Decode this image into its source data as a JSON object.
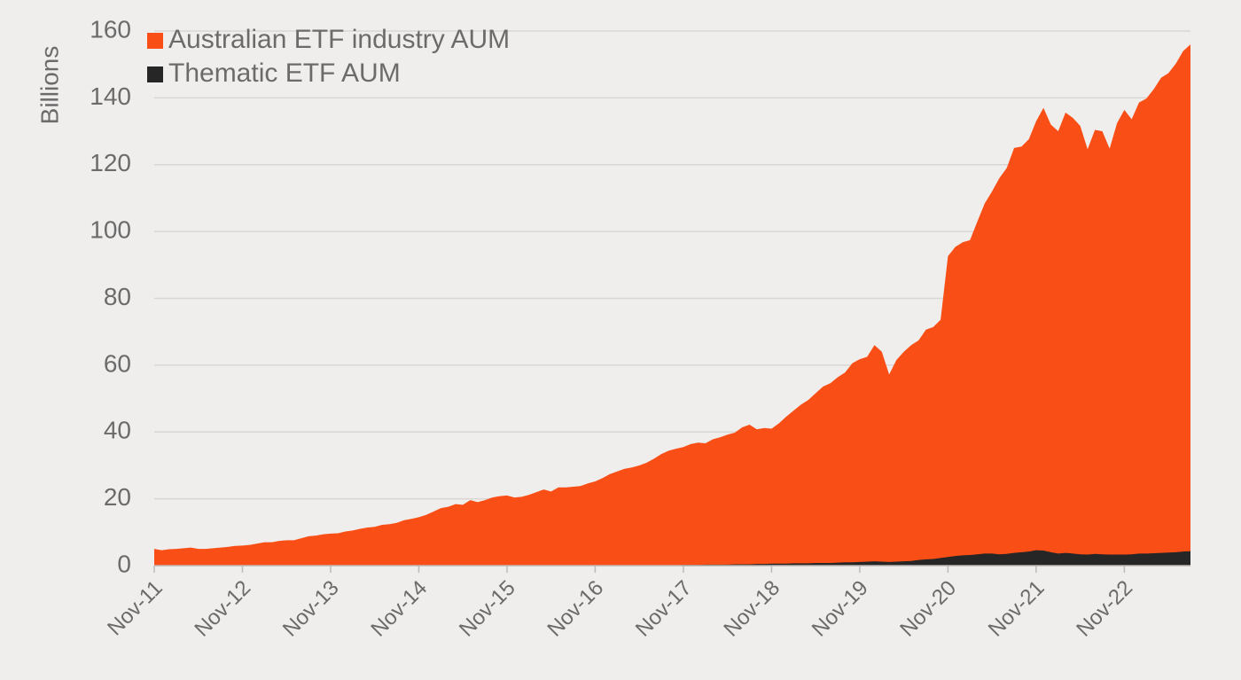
{
  "chart_data": {
    "type": "area",
    "y_label": "Billions",
    "categories": [
      "Nov-11",
      null,
      null,
      null,
      null,
      null,
      null,
      null,
      null,
      null,
      null,
      null,
      "Nov-12",
      null,
      null,
      null,
      null,
      null,
      null,
      null,
      null,
      null,
      null,
      null,
      "Nov-13",
      null,
      null,
      null,
      null,
      null,
      null,
      null,
      null,
      null,
      null,
      null,
      "Nov-14",
      null,
      null,
      null,
      null,
      null,
      null,
      null,
      null,
      null,
      null,
      null,
      "Nov-15",
      null,
      null,
      null,
      null,
      null,
      null,
      null,
      null,
      null,
      null,
      null,
      "Nov-16",
      null,
      null,
      null,
      null,
      null,
      null,
      null,
      null,
      null,
      null,
      null,
      "Nov-17",
      null,
      null,
      null,
      null,
      null,
      null,
      null,
      null,
      null,
      null,
      null,
      "Nov-18",
      null,
      null,
      null,
      null,
      null,
      null,
      null,
      null,
      null,
      null,
      null,
      "Nov-19",
      null,
      null,
      null,
      null,
      null,
      null,
      null,
      null,
      null,
      null,
      null,
      "Nov-20",
      null,
      null,
      null,
      null,
      null,
      null,
      null,
      null,
      null,
      null,
      null,
      "Nov-21",
      null,
      null,
      null,
      null,
      null,
      null,
      null,
      null,
      null,
      null,
      null,
      "Nov-22",
      null,
      null,
      null,
      null,
      null,
      null,
      null,
      null,
      null
    ],
    "series": [
      {
        "name": "Australian ETF industry AUM",
        "color": "#f94f17",
        "values": [
          5.0,
          4.6,
          4.9,
          5.0,
          5.2,
          5.4,
          5.0,
          5.0,
          5.2,
          5.4,
          5.6,
          5.9,
          6.0,
          6.2,
          6.6,
          7.0,
          7.0,
          7.4,
          7.6,
          7.6,
          8.2,
          8.8,
          9.0,
          9.4,
          9.6,
          9.7,
          10.2,
          10.5,
          11.0,
          11.4,
          11.6,
          12.2,
          12.4,
          12.8,
          13.6,
          14.0,
          14.5,
          15.2,
          16.2,
          17.2,
          17.6,
          18.4,
          18.2,
          19.6,
          19.0,
          19.6,
          20.4,
          20.8,
          21.0,
          20.4,
          20.6,
          21.2,
          22.0,
          22.8,
          22.2,
          23.4,
          23.4,
          23.6,
          23.8,
          24.6,
          25.2,
          26.2,
          27.4,
          28.2,
          29.0,
          29.4,
          30.0,
          30.8,
          32.0,
          33.4,
          34.4,
          35.0,
          35.5,
          36.4,
          36.8,
          36.6,
          37.8,
          38.4,
          39.2,
          39.8,
          41.4,
          42.2,
          40.8,
          41.2,
          41.0,
          42.6,
          44.6,
          46.4,
          48.2,
          49.6,
          51.6,
          53.6,
          54.6,
          56.4,
          57.8,
          60.6,
          61.8,
          62.5,
          66.0,
          64.0,
          57.2,
          61.6,
          64.0,
          66.0,
          67.4,
          70.6,
          71.4,
          73.6,
          92.6,
          95.4,
          96.8,
          97.4,
          103.0,
          108.4,
          112.0,
          116.0,
          119.0,
          125.0,
          125.4,
          127.6,
          133.0,
          137.0,
          132.0,
          130.0,
          135.6,
          134.0,
          131.6,
          124.6,
          130.4,
          130.0,
          124.8,
          132.4,
          136.4,
          133.6,
          138.6,
          139.8,
          142.6,
          146.0,
          147.4,
          150.2,
          154.0,
          156.0
        ]
      },
      {
        "name": "Thematic ETF AUM",
        "color": "#262626",
        "values": [
          0,
          0,
          0,
          0,
          0,
          0,
          0,
          0,
          0,
          0,
          0,
          0,
          0,
          0,
          0,
          0,
          0,
          0,
          0,
          0,
          0,
          0,
          0,
          0,
          0,
          0,
          0,
          0,
          0,
          0,
          0,
          0,
          0,
          0,
          0,
          0,
          0,
          0,
          0,
          0,
          0,
          0,
          0,
          0,
          0,
          0,
          0,
          0,
          0,
          0,
          0,
          0,
          0,
          0,
          0,
          0,
          0,
          0,
          0,
          0,
          0,
          0,
          0,
          0,
          0,
          0,
          0.1,
          0.1,
          0.1,
          0.1,
          0.1,
          0.1,
          0.2,
          0.2,
          0.2,
          0.3,
          0.3,
          0.3,
          0.3,
          0.4,
          0.4,
          0.4,
          0.5,
          0.5,
          0.6,
          0.6,
          0.6,
          0.7,
          0.7,
          0.7,
          0.8,
          0.8,
          0.8,
          0.9,
          1.0,
          1.0,
          1.1,
          1.2,
          1.3,
          1.2,
          1.1,
          1.2,
          1.3,
          1.4,
          1.7,
          1.9,
          2.0,
          2.3,
          2.6,
          2.9,
          3.1,
          3.2,
          3.4,
          3.6,
          3.6,
          3.4,
          3.5,
          3.8,
          4.0,
          4.2,
          4.6,
          4.5,
          4.0,
          3.6,
          3.8,
          3.6,
          3.4,
          3.3,
          3.5,
          3.4,
          3.3,
          3.3,
          3.3,
          3.4,
          3.6,
          3.6,
          3.7,
          3.8,
          3.9,
          4.0,
          4.2,
          4.3
        ]
      }
    ],
    "ylim": [
      0,
      160
    ],
    "yticks": [
      0,
      20,
      40,
      60,
      80,
      100,
      120,
      140,
      160
    ],
    "grid": true,
    "legend": "top-left"
  }
}
